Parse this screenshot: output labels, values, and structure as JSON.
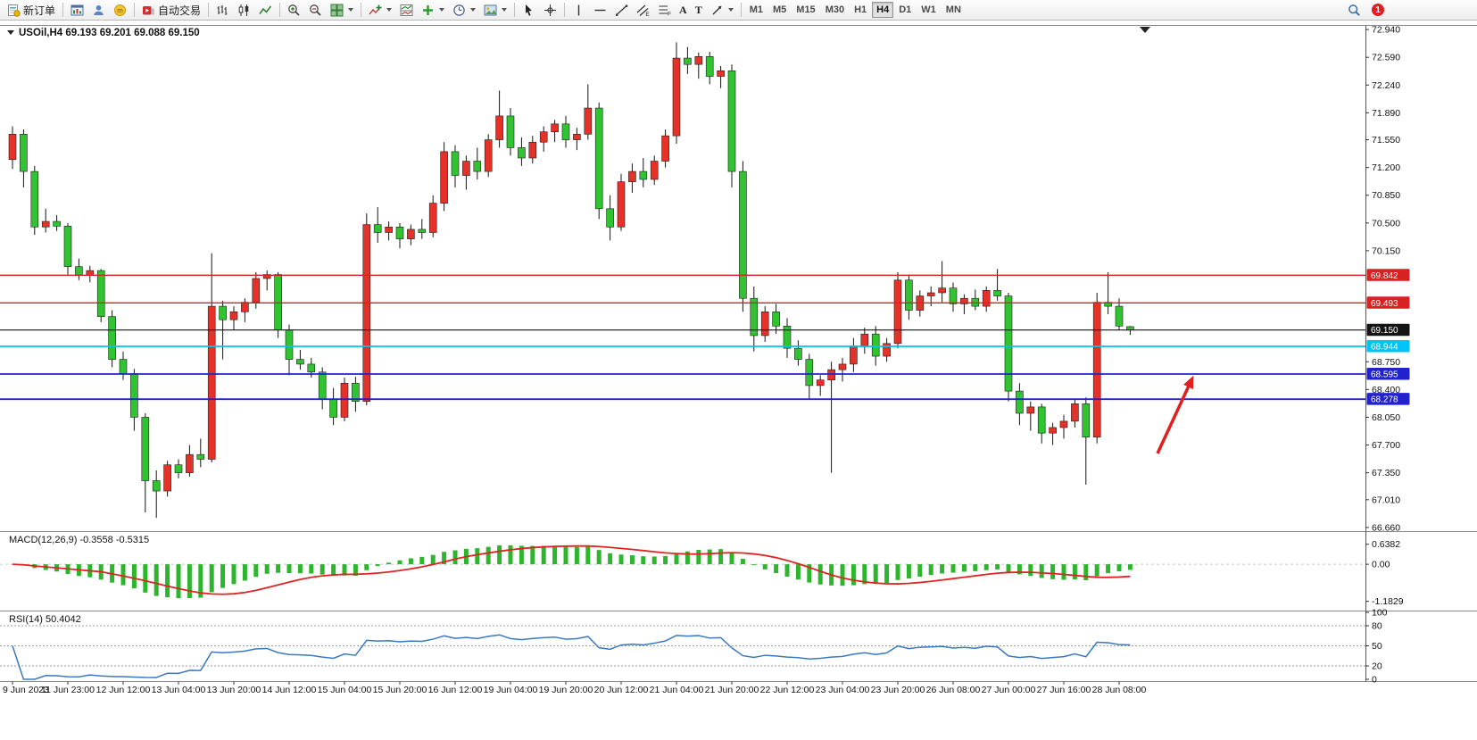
{
  "toolbar": {
    "new_order_label": "新订单",
    "auto_trading_label": "自动交易",
    "timeframes": [
      "M1",
      "M5",
      "M15",
      "M30",
      "H1",
      "H4",
      "D1",
      "W1",
      "MN"
    ],
    "active_timeframe": "H4",
    "notification_count": "1",
    "icon_letters": {
      "community": "m",
      "channel": "E",
      "fibonacci": "F",
      "text": "A",
      "label": "T"
    }
  },
  "colors": {
    "up_candle": "#e53228",
    "down_candle": "#30c430",
    "wick": "#141414",
    "candle_border": "#1d1d1d",
    "macd_histogram": "#2db52d",
    "macd_signal": "#e02424",
    "rsi_line": "#3a78c2",
    "level_dashed": "#9a9a9a",
    "axis_text": "#111111",
    "panel_border": "#8a8a8a",
    "annotation_arrow": "#e02020"
  },
  "chart_data": {
    "type": "candlestick",
    "title": "USOil,H4",
    "quote_text": "69.193 69.201 69.088 69.150",
    "price_range": [
      66.625,
      72.975
    ],
    "y_ticks": [
      72.94,
      72.59,
      72.24,
      71.89,
      71.55,
      71.2,
      70.85,
      70.5,
      70.15,
      68.75,
      68.4,
      68.05,
      67.7,
      67.35,
      67.01,
      66.66
    ],
    "price_lines": [
      {
        "value": 69.842,
        "color": "#d62222",
        "width": 1.4
      },
      {
        "value": 69.493,
        "color": "#d62222",
        "width": 1.4
      },
      {
        "value": 69.15,
        "color": "#141414",
        "width": 1.1
      },
      {
        "value": 68.944,
        "color": "#00c3f5",
        "width": 1.8
      },
      {
        "value": 68.595,
        "color": "#2222cc",
        "width": 1.8
      },
      {
        "value": 68.278,
        "color": "#2222cc",
        "width": 1.8
      }
    ],
    "label_every": 5,
    "x_labels": [
      "9 Jun 2023",
      "11 Jun 23:00",
      "12 Jun 12:00",
      "13 Jun 04:00",
      "13 Jun 20:00",
      "14 Jun 12:00",
      "15 Jun 04:00",
      "15 Jun 20:00",
      "16 Jun 12:00",
      "19 Jun 04:00",
      "19 Jun 20:00",
      "20 Jun 12:00",
      "21 Jun 04:00",
      "21 Jun 20:00",
      "22 Jun 12:00",
      "23 Jun 04:00",
      "23 Jun 20:00",
      "26 Jun 08:00",
      "27 Jun 00:00",
      "27 Jun 16:00",
      "28 Jun 08:00"
    ],
    "candles": [
      [
        71.3,
        71.72,
        71.18,
        71.62
      ],
      [
        71.62,
        71.68,
        70.95,
        71.15
      ],
      [
        71.15,
        71.22,
        70.35,
        70.45
      ],
      [
        70.45,
        70.68,
        70.38,
        70.52
      ],
      [
        70.52,
        70.6,
        70.4,
        70.46
      ],
      [
        70.46,
        70.5,
        69.85,
        69.95
      ],
      [
        69.95,
        70.05,
        69.78,
        69.84
      ],
      [
        69.84,
        69.96,
        69.75,
        69.9
      ],
      [
        69.9,
        69.92,
        69.25,
        69.32
      ],
      [
        69.32,
        69.4,
        68.68,
        68.78
      ],
      [
        68.78,
        68.88,
        68.52,
        68.6
      ],
      [
        68.6,
        68.66,
        67.88,
        68.05
      ],
      [
        68.05,
        68.1,
        66.85,
        67.25
      ],
      [
        67.25,
        67.38,
        66.78,
        67.12
      ],
      [
        67.12,
        67.5,
        67.05,
        67.45
      ],
      [
        67.45,
        67.52,
        67.28,
        67.35
      ],
      [
        67.35,
        67.7,
        67.3,
        67.58
      ],
      [
        67.58,
        67.78,
        67.42,
        67.52
      ],
      [
        67.52,
        70.12,
        67.48,
        69.45
      ],
      [
        69.45,
        69.52,
        68.78,
        69.28
      ],
      [
        69.28,
        69.45,
        69.15,
        69.38
      ],
      [
        69.38,
        69.55,
        69.25,
        69.5
      ],
      [
        69.5,
        69.88,
        69.42,
        69.8
      ],
      [
        69.8,
        69.9,
        69.65,
        69.85
      ],
      [
        69.85,
        69.88,
        69.05,
        69.15
      ],
      [
        69.15,
        69.22,
        68.58,
        68.78
      ],
      [
        68.78,
        68.9,
        68.65,
        68.72
      ],
      [
        68.72,
        68.8,
        68.55,
        68.62
      ],
      [
        68.62,
        68.68,
        68.15,
        68.28
      ],
      [
        68.28,
        68.42,
        67.95,
        68.05
      ],
      [
        68.05,
        68.55,
        68.0,
        68.48
      ],
      [
        68.48,
        68.56,
        68.12,
        68.25
      ],
      [
        68.25,
        70.62,
        68.2,
        70.48
      ],
      [
        70.48,
        70.7,
        70.25,
        70.38
      ],
      [
        70.38,
        70.52,
        70.28,
        70.45
      ],
      [
        70.45,
        70.5,
        70.18,
        70.3
      ],
      [
        70.3,
        70.48,
        70.22,
        70.42
      ],
      [
        70.42,
        70.55,
        70.3,
        70.38
      ],
      [
        70.38,
        70.85,
        70.32,
        70.75
      ],
      [
        70.75,
        71.52,
        70.65,
        71.4
      ],
      [
        71.4,
        71.48,
        70.95,
        71.1
      ],
      [
        71.1,
        71.35,
        70.92,
        71.28
      ],
      [
        71.28,
        71.45,
        71.05,
        71.15
      ],
      [
        71.15,
        71.62,
        71.08,
        71.55
      ],
      [
        71.55,
        72.17,
        71.45,
        71.85
      ],
      [
        71.85,
        71.95,
        71.35,
        71.45
      ],
      [
        71.45,
        71.58,
        71.22,
        71.32
      ],
      [
        71.32,
        71.6,
        71.25,
        71.52
      ],
      [
        71.52,
        71.72,
        71.4,
        71.65
      ],
      [
        71.65,
        71.8,
        71.52,
        71.75
      ],
      [
        71.75,
        71.85,
        71.45,
        71.55
      ],
      [
        71.55,
        71.7,
        71.42,
        71.62
      ],
      [
        71.62,
        72.25,
        71.55,
        71.95
      ],
      [
        71.95,
        72.02,
        70.55,
        70.68
      ],
      [
        70.68,
        70.85,
        70.28,
        70.45
      ],
      [
        70.45,
        71.12,
        70.4,
        71.02
      ],
      [
        71.02,
        71.25,
        70.88,
        71.15
      ],
      [
        71.15,
        71.32,
        70.95,
        71.05
      ],
      [
        71.05,
        71.35,
        70.98,
        71.28
      ],
      [
        71.28,
        71.68,
        71.2,
        71.6
      ],
      [
        71.6,
        72.78,
        71.5,
        72.58
      ],
      [
        72.58,
        72.72,
        72.38,
        72.5
      ],
      [
        72.5,
        72.65,
        72.32,
        72.6
      ],
      [
        72.6,
        72.66,
        72.25,
        72.35
      ],
      [
        72.35,
        72.48,
        72.2,
        72.42
      ],
      [
        72.42,
        72.5,
        70.95,
        71.15
      ],
      [
        71.15,
        71.28,
        69.38,
        69.55
      ],
      [
        69.55,
        69.7,
        68.88,
        69.08
      ],
      [
        69.08,
        69.45,
        69.0,
        69.38
      ],
      [
        69.38,
        69.48,
        69.1,
        69.2
      ],
      [
        69.2,
        69.3,
        68.8,
        68.92
      ],
      [
        68.92,
        69.02,
        68.7,
        68.78
      ],
      [
        68.78,
        68.85,
        68.28,
        68.45
      ],
      [
        68.45,
        68.58,
        68.32,
        68.52
      ],
      [
        68.52,
        68.75,
        67.35,
        68.65
      ],
      [
        68.65,
        68.8,
        68.5,
        68.72
      ],
      [
        68.72,
        69.05,
        68.62,
        68.95
      ],
      [
        68.95,
        69.18,
        68.85,
        69.1
      ],
      [
        69.1,
        69.2,
        68.7,
        68.82
      ],
      [
        68.82,
        69.05,
        68.75,
        68.98
      ],
      [
        68.98,
        69.88,
        68.92,
        69.78
      ],
      [
        69.78,
        69.85,
        69.28,
        69.4
      ],
      [
        69.4,
        69.65,
        69.32,
        69.58
      ],
      [
        69.58,
        69.7,
        69.45,
        69.62
      ],
      [
        69.62,
        70.02,
        69.5,
        69.68
      ],
      [
        69.68,
        69.75,
        69.38,
        69.48
      ],
      [
        69.48,
        69.6,
        69.35,
        69.55
      ],
      [
        69.55,
        69.66,
        69.4,
        69.45
      ],
      [
        69.45,
        69.7,
        69.38,
        69.65
      ],
      [
        69.65,
        69.92,
        69.52,
        69.58
      ],
      [
        69.58,
        69.62,
        68.25,
        68.38
      ],
      [
        68.38,
        68.48,
        67.95,
        68.1
      ],
      [
        68.1,
        68.25,
        67.88,
        68.18
      ],
      [
        68.18,
        68.22,
        67.72,
        67.85
      ],
      [
        67.85,
        67.98,
        67.7,
        67.92
      ],
      [
        67.92,
        68.08,
        67.78,
        68.0
      ],
      [
        68.0,
        68.28,
        67.92,
        68.22
      ],
      [
        68.22,
        68.3,
        67.2,
        67.8
      ],
      [
        67.8,
        69.62,
        67.72,
        69.5
      ],
      [
        69.5,
        69.88,
        69.35,
        69.45
      ],
      [
        69.45,
        69.55,
        69.15,
        69.2
      ],
      [
        69.193,
        69.201,
        69.088,
        69.15
      ]
    ],
    "indicators": {
      "macd": {
        "label": "MACD(12,26,9)",
        "values_text": "-0.3558 -0.5315",
        "params": [
          12,
          26,
          9
        ],
        "axis": [
          {
            "v": 0.6382,
            "t": "0.6382"
          },
          {
            "v": 0,
            "t": "0.00"
          },
          {
            "v": -1.1829,
            "t": "-1.1829"
          }
        ]
      },
      "rsi": {
        "label": "RSI(14)",
        "value_text": "50.4042",
        "period": 14,
        "axis": [
          100,
          80,
          50,
          20,
          0
        ],
        "levels": [
          80,
          50,
          20
        ]
      }
    },
    "annotations": {
      "arrow": {
        "from": [
          1297,
          508
        ],
        "to": [
          1334,
          428
        ]
      }
    }
  }
}
